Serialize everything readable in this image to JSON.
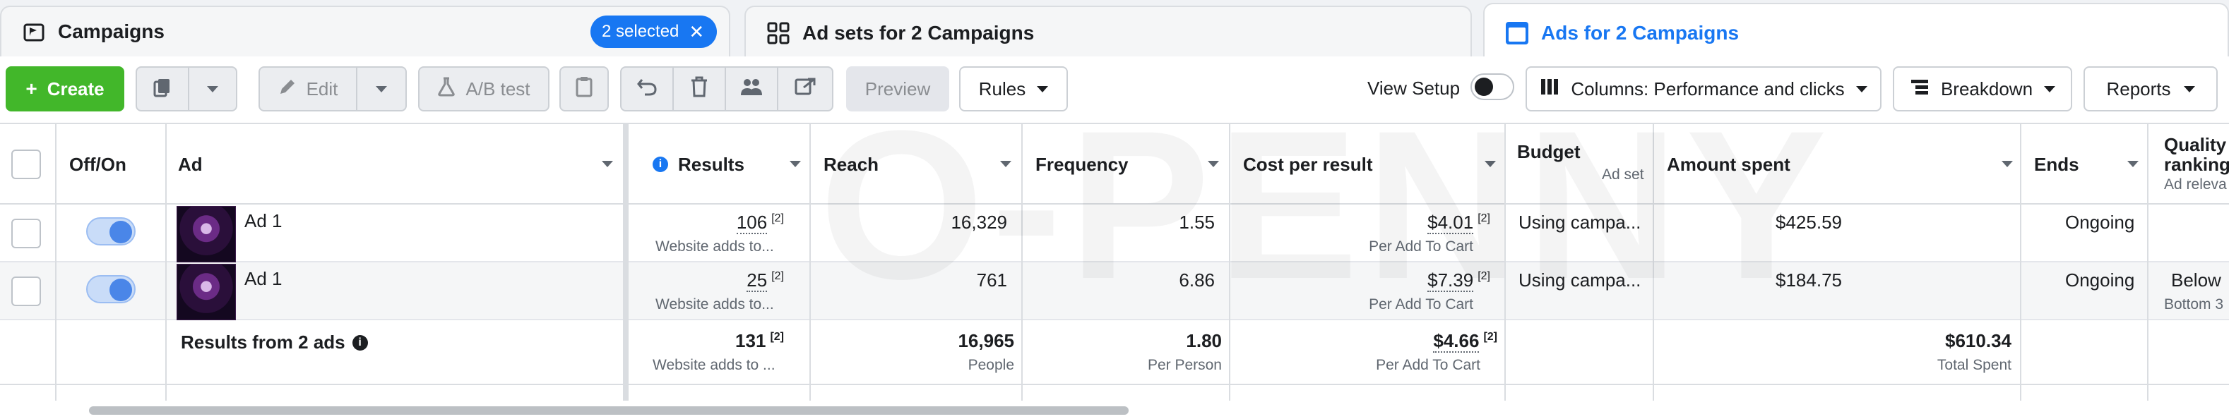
{
  "tabs": {
    "campaigns": "Campaigns",
    "selected_pill": "2 selected",
    "adsets": "Ad sets for 2 Campaigns",
    "ads": "Ads for 2 Campaigns"
  },
  "toolbar": {
    "create": "Create",
    "edit": "Edit",
    "ab_test": "A/B test",
    "preview": "Preview",
    "rules": "Rules",
    "view_setup": "View Setup",
    "columns": "Columns: Performance and clicks",
    "breakdown": "Breakdown",
    "reports": "Reports"
  },
  "table": {
    "headers": {
      "offon": "Off/On",
      "ad": "Ad",
      "results": "Results",
      "reach": "Reach",
      "frequency": "Frequency",
      "cost_per_result": "Cost per result",
      "budget": "Budget",
      "budget_sub": "Ad set",
      "amount_spent": "Amount spent",
      "ends": "Ends",
      "quality_ranking_1": "Quality",
      "quality_ranking_2": "ranking",
      "quality_ranking_sub": "Ad releva"
    },
    "rows": [
      {
        "ad": "Ad 1",
        "results": "106",
        "results_fn": "[2]",
        "results_sub": "Website adds to...",
        "reach": "16,329",
        "frequency": "1.55",
        "cost": "$4.01",
        "cost_fn": "[2]",
        "cost_sub": "Per Add To Cart",
        "budget": "Using campa...",
        "spent": "$425.59",
        "ends": "Ongoing",
        "quality": "",
        "quality_sub": ""
      },
      {
        "ad": "Ad 1",
        "results": "25",
        "results_fn": "[2]",
        "results_sub": "Website adds to...",
        "reach": "761",
        "frequency": "6.86",
        "cost": "$7.39",
        "cost_fn": "[2]",
        "cost_sub": "Per Add To Cart",
        "budget": "Using campa...",
        "spent": "$184.75",
        "ends": "Ongoing",
        "quality": "Below",
        "quality_sub": "Bottom 3"
      }
    ],
    "total": {
      "label": "Results from 2 ads",
      "results": "131",
      "results_fn": "[2]",
      "results_sub": "Website adds to ...",
      "reach": "16,965",
      "reach_sub": "People",
      "frequency": "1.80",
      "frequency_sub": "Per Person",
      "cost": "$4.66",
      "cost_fn": "[2]",
      "cost_sub": "Per Add To Cart",
      "spent": "$610.34",
      "spent_sub": "Total Spent"
    }
  },
  "watermark": "O-PENNY",
  "colors": {
    "accent_blue": "#1877f2",
    "create_green": "#42b72a",
    "toggle_on": "#4a86e8"
  }
}
